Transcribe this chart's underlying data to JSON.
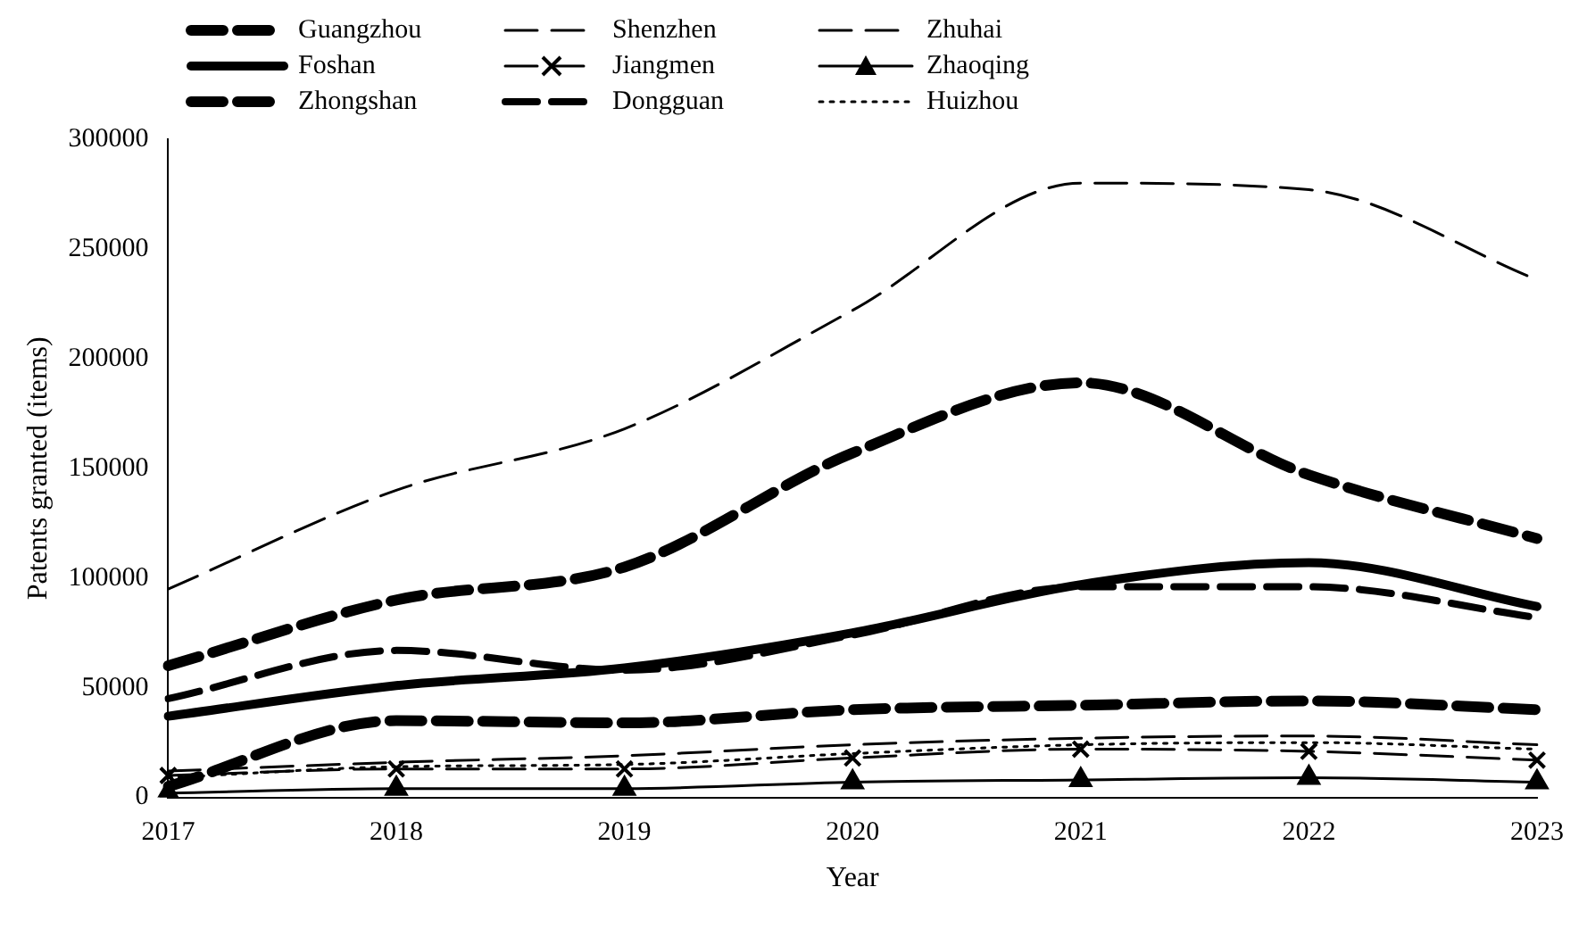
{
  "chart_data": {
    "type": "line",
    "xlabel": "Year",
    "ylabel": "Patents granted (items)",
    "categories": [
      "2017",
      "2018",
      "2019",
      "2020",
      "2021",
      "2022",
      "2023"
    ],
    "ylim": [
      0,
      300000
    ],
    "yticks": [
      0,
      50000,
      100000,
      150000,
      200000,
      250000,
      300000
    ],
    "grid": false,
    "legend": "top",
    "series": [
      {
        "name": "Guangzhou",
        "color": "#000000",
        "line_style": "dashed",
        "marker": "none",
        "values": [
          60000,
          90000,
          105000,
          157000,
          189000,
          147000,
          118000
        ]
      },
      {
        "name": "Shenzhen",
        "color": "#000000",
        "line_style": "dashed",
        "marker": "none",
        "values": [
          95000,
          140000,
          168000,
          222000,
          280000,
          277000,
          236000
        ]
      },
      {
        "name": "Zhuhai",
        "color": "#000000",
        "line_style": "dashed",
        "marker": "none",
        "values": [
          12000,
          16000,
          19000,
          24000,
          27000,
          28000,
          24000
        ]
      },
      {
        "name": "Foshan",
        "color": "#000000",
        "line_style": "solid",
        "marker": "none",
        "values": [
          37000,
          51000,
          59000,
          75000,
          97000,
          107000,
          87000
        ]
      },
      {
        "name": "Jiangmen",
        "color": "#000000",
        "line_style": "dashed",
        "marker": "cross",
        "values": [
          10000,
          13000,
          13000,
          18000,
          22000,
          21000,
          17000
        ]
      },
      {
        "name": "Zhaoqing",
        "color": "#000000",
        "line_style": "solid",
        "marker": "triangle",
        "values": [
          2000,
          4000,
          4000,
          7000,
          8000,
          9000,
          7000
        ]
      },
      {
        "name": "Zhongshan",
        "color": "#000000",
        "line_style": "dashed",
        "marker": "none",
        "values": [
          5000,
          35000,
          34000,
          40000,
          42000,
          44000,
          40000
        ]
      },
      {
        "name": "Dongguan",
        "color": "#000000",
        "line_style": "dashed",
        "marker": "none",
        "values": [
          45000,
          67000,
          58000,
          74000,
          96000,
          96000,
          82000
        ]
      },
      {
        "name": "Huizhou",
        "color": "#000000",
        "line_style": "dotted",
        "marker": "none",
        "values": [
          9000,
          14000,
          15000,
          20000,
          24000,
          25000,
          22000
        ]
      }
    ]
  }
}
